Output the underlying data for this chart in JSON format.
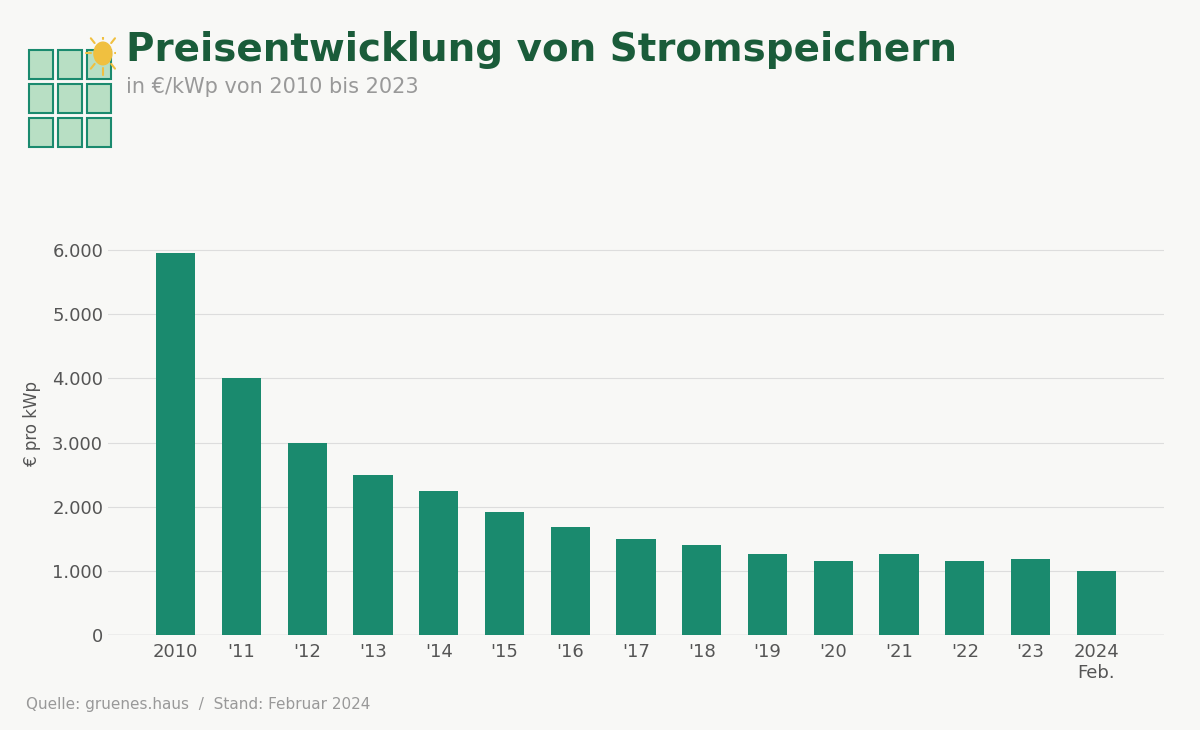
{
  "title": "Preisentwicklung von Stromspeichern",
  "subtitle": "in €/kWp von 2010 bis 2023",
  "ylabel": "€ pro kWp",
  "source_text": "Quelle: gruenes.haus  /  Stand: Februar 2024",
  "categories": [
    "2010",
    "'11",
    "'12",
    "'13",
    "'14",
    "'15",
    "'16",
    "'17",
    "'18",
    "'19",
    "'20",
    "'21",
    "'22",
    "'23",
    "2024\nFeb."
  ],
  "values": [
    5950,
    4000,
    3000,
    2500,
    2250,
    1920,
    1680,
    1500,
    1400,
    1270,
    1150,
    1270,
    1160,
    1180,
    1000
  ],
  "bar_color": "#1a8a6e",
  "title_color": "#1a5c3a",
  "subtitle_color": "#999999",
  "axis_color": "#cccccc",
  "tick_color": "#555555",
  "background_color": "#f8f8f6",
  "grid_color": "#dddddd",
  "ylim": [
    0,
    6600
  ],
  "yticks": [
    0,
    1000,
    2000,
    3000,
    4000,
    5000,
    6000
  ],
  "title_fontsize": 28,
  "subtitle_fontsize": 15,
  "tick_fontsize": 13,
  "ylabel_fontsize": 12,
  "source_fontsize": 11
}
